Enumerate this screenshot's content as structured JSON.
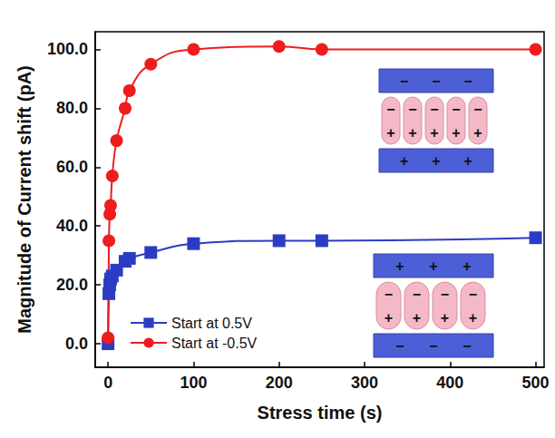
{
  "chart_data": {
    "type": "line",
    "x_label": "Stress time (s)",
    "y_label": "Magnitude of Current shift (pA)",
    "xlim": [
      -15,
      510
    ],
    "xticks": [
      0,
      100,
      200,
      300,
      400,
      500
    ],
    "ylim": [
      -8,
      106
    ],
    "yticks": [
      {
        "value": 0,
        "label": "0.0"
      },
      {
        "value": 20,
        "label": "20.0"
      },
      {
        "value": 40,
        "label": "40.0"
      },
      {
        "value": 60,
        "label": "60.0"
      },
      {
        "value": 80,
        "label": "80.0"
      },
      {
        "value": 100,
        "label": "100.0"
      }
    ],
    "grid": false,
    "legend": "lower left",
    "series": [
      {
        "name": "Start at 0.5V",
        "color": "#2b3cc4",
        "marker": "square",
        "line_style": "solid",
        "x": [
          0,
          1,
          2,
          3,
          5,
          10,
          20,
          25,
          50,
          100,
          200,
          250,
          500
        ],
        "values": [
          0,
          17,
          20,
          22,
          23,
          25,
          28,
          29,
          31,
          34,
          35,
          35,
          36
        ]
      },
      {
        "name": "Start at -0.5V",
        "color": "#ee1c1c",
        "marker": "circle",
        "line_style": "solid",
        "x": [
          0,
          1,
          2,
          3,
          5,
          10,
          20,
          25,
          50,
          100,
          200,
          250,
          500
        ],
        "values": [
          2,
          35,
          44,
          47,
          57,
          69,
          80,
          86,
          95,
          100,
          101,
          100,
          100
        ]
      }
    ],
    "insets": [
      {
        "top_plate": "−",
        "dipole_top": "−",
        "dipole_bottom": "+",
        "bottom_plate": "+"
      },
      {
        "top_plate": "+",
        "dipole_top": "−",
        "dipole_bottom": "+",
        "bottom_plate": "−"
      }
    ]
  }
}
